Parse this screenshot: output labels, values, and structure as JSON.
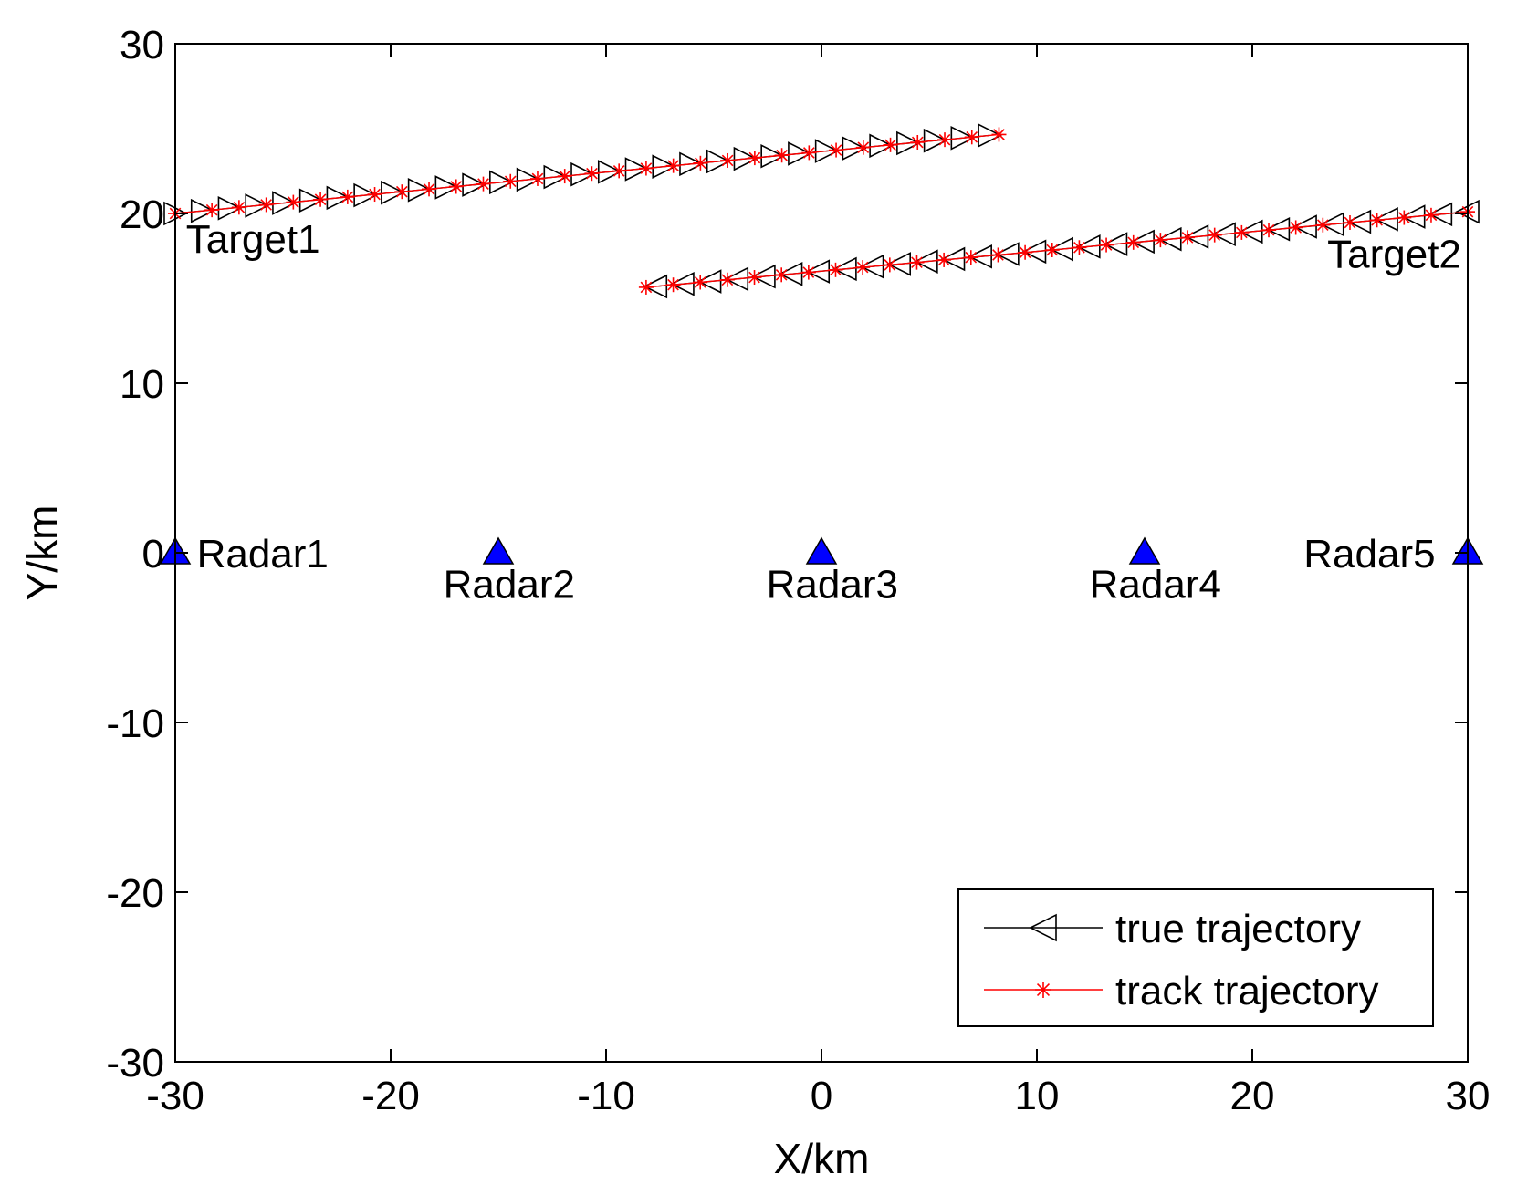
{
  "chart_data": {
    "type": "scatter",
    "title": "",
    "xlabel": "X/km",
    "ylabel": "Y/km",
    "xlim": [
      -30,
      30
    ],
    "ylim": [
      -30,
      30
    ],
    "xticks": [
      -30,
      -20,
      -10,
      0,
      10,
      20,
      30
    ],
    "yticks": [
      -30,
      -20,
      -10,
      0,
      10,
      20,
      30
    ],
    "grid": false,
    "legend_position": "bottom-right",
    "colors": {
      "true": "#000000",
      "track": "#ff0000",
      "radar": "#0000ff"
    },
    "legend": [
      {
        "label": "true trajectory",
        "marker": "triangle-left-open",
        "color": "#000000"
      },
      {
        "label": "track trajectory",
        "marker": "asterisk",
        "color": "#ff0000"
      }
    ],
    "targets": [
      {
        "label": "Target1",
        "label_x": -29.5,
        "label_y": 17.7,
        "start": [
          -30,
          20
        ],
        "end": [
          7.8,
          24.6
        ],
        "points": 31
      },
      {
        "label": "Target2",
        "label_x": 26.7,
        "label_y": 16.8,
        "start": [
          30,
          20.1
        ],
        "end": [
          -7.7,
          15.7
        ],
        "points": 31
      }
    ],
    "radars": [
      {
        "label": "Radar1",
        "x": -30,
        "y": 0,
        "label_x": -29,
        "label_y": -0.1,
        "anchor": "start"
      },
      {
        "label": "Radar2",
        "x": -15,
        "y": 0,
        "label_x": -14.5,
        "label_y": -1.9,
        "anchor": "middle"
      },
      {
        "label": "Radar3",
        "x": 0,
        "y": 0,
        "label_x": 0.5,
        "label_y": -1.9,
        "anchor": "middle"
      },
      {
        "label": "Radar4",
        "x": 15,
        "y": 0,
        "label_x": 15.5,
        "label_y": -1.9,
        "anchor": "middle"
      },
      {
        "label": "Radar5",
        "x": 30,
        "y": 0,
        "label_x": 28.5,
        "label_y": -0.1,
        "anchor": "end"
      }
    ]
  }
}
